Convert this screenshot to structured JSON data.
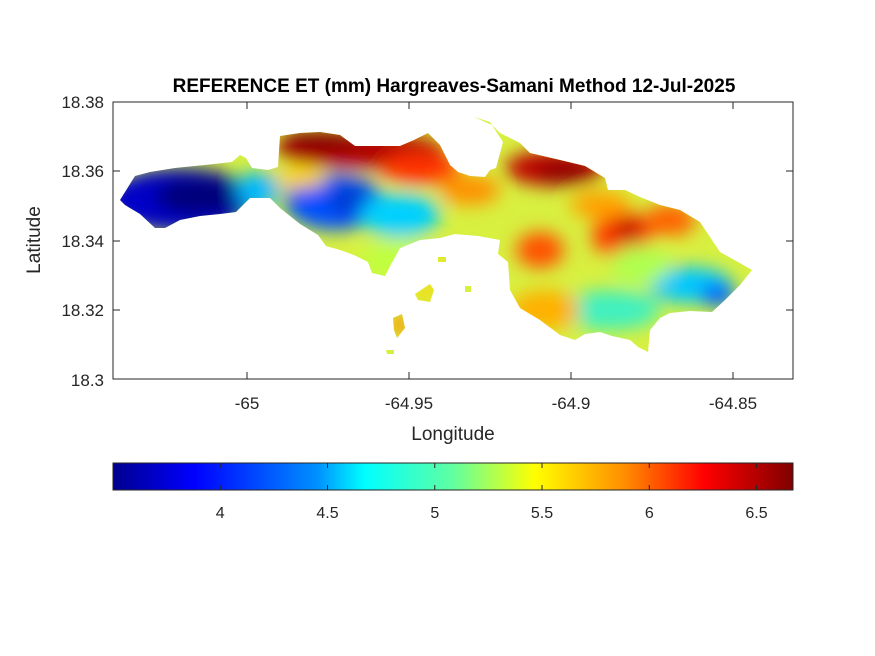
{
  "chart_data": {
    "type": "heatmap",
    "title": "REFERENCE ET (mm) Hargreaves-Samani Method  12-Jul-2025",
    "xlabel": "Longitude",
    "ylabel": "Latitude",
    "xlim": [
      -65.038,
      -64.835
    ],
    "ylim": [
      18.3,
      18.38
    ],
    "xticks": [
      -65,
      -64.95,
      -64.9,
      -64.85
    ],
    "xtick_labels": [
      "-65",
      "-64.95",
      "-64.9",
      "-64.85"
    ],
    "yticks": [
      18.38,
      18.36,
      18.34,
      18.32,
      18.3
    ],
    "ytick_labels": [
      "18.38",
      "18.36",
      "18.34",
      "18.32",
      "18.3"
    ],
    "colorbar": {
      "orientation": "horizontal",
      "colormap": "jet",
      "range": [
        3.5,
        6.67
      ],
      "ticks": [
        4,
        4.5,
        5,
        5.5,
        6,
        6.5
      ],
      "tick_labels": [
        "4",
        "4.5",
        "5",
        "5.5",
        "6",
        "6.5"
      ]
    },
    "sample_values": [
      {
        "lon": -65.0,
        "lat": 18.351,
        "value": 3.6
      },
      {
        "lon": -64.975,
        "lat": 18.351,
        "value": 4.3
      },
      {
        "lon": -64.96,
        "lat": 18.365,
        "value": 6.6
      },
      {
        "lon": -64.905,
        "lat": 18.36,
        "value": 6.6
      },
      {
        "lon": -64.912,
        "lat": 18.339,
        "value": 6.3
      },
      {
        "lon": -64.885,
        "lat": 18.343,
        "value": 6.4
      },
      {
        "lon": -64.855,
        "lat": 18.325,
        "value": 4.5
      },
      {
        "lon": -64.945,
        "lat": 18.332,
        "value": 5.4
      },
      {
        "lon": -64.905,
        "lat": 18.322,
        "value": 5.0
      }
    ]
  }
}
